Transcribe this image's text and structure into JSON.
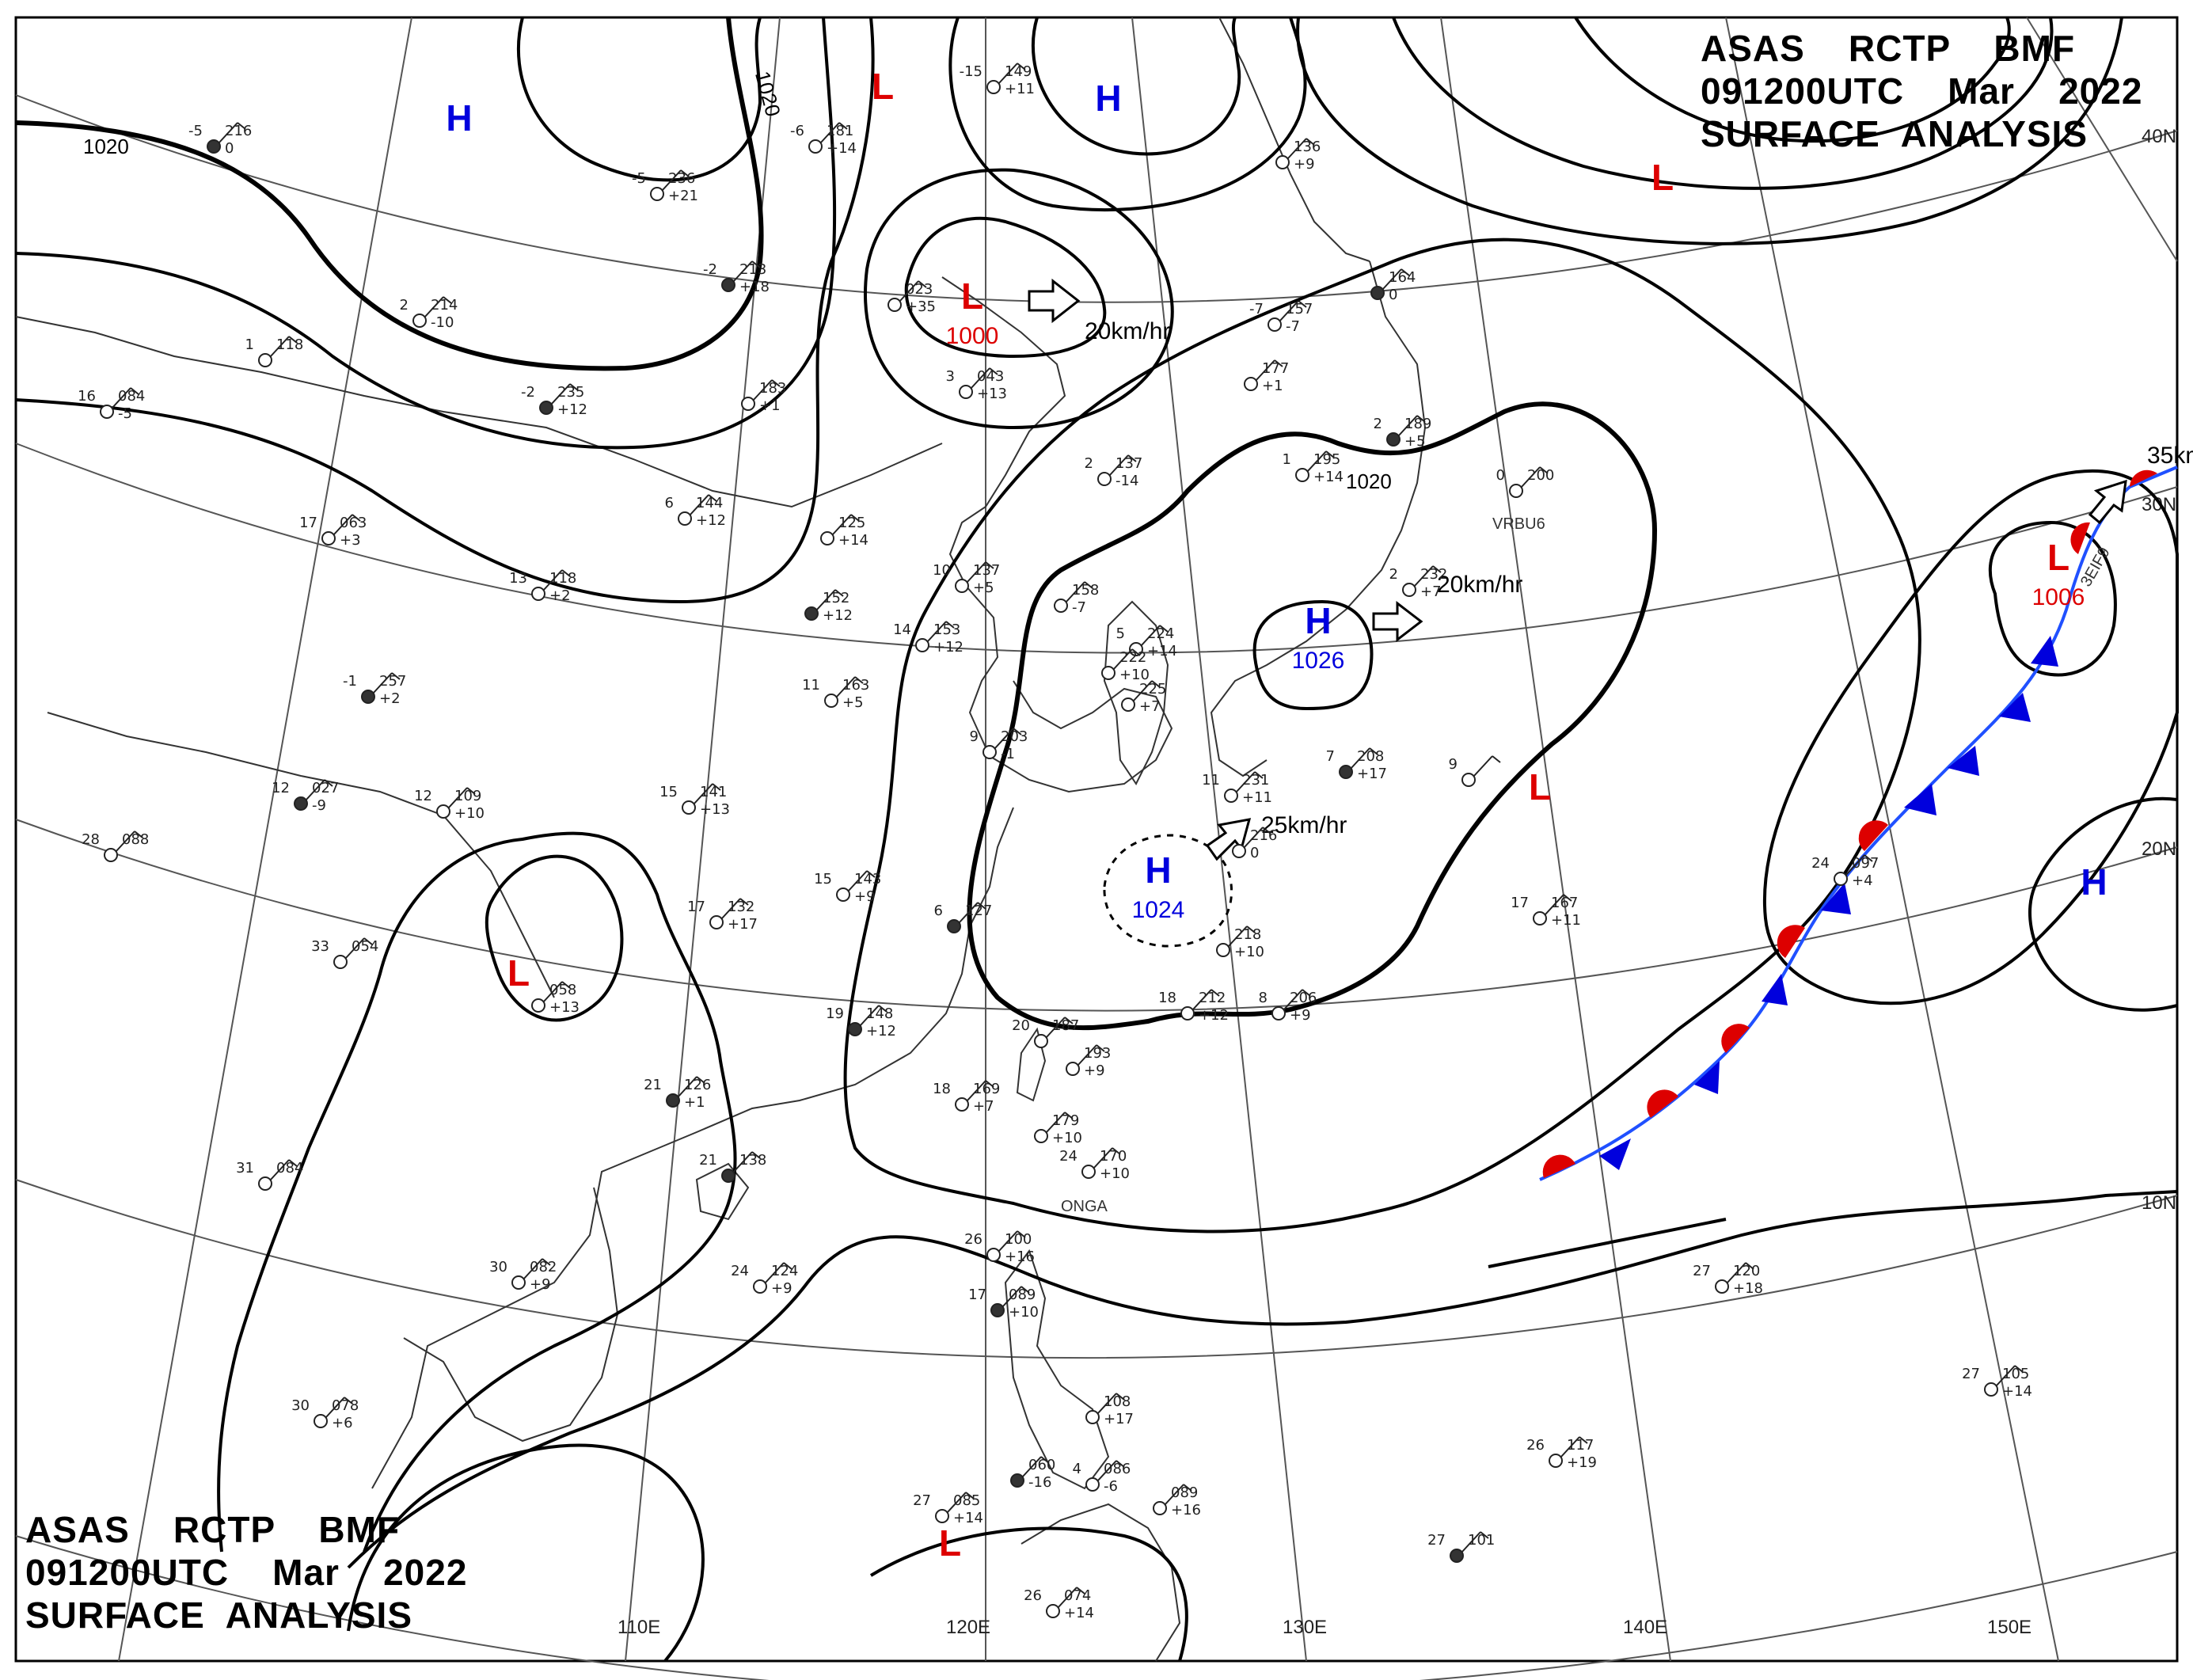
{
  "header": {
    "line1": "ASAS    RCTP    BMF",
    "line2": "091200UTC    Mar    2022",
    "line3": "SURFACE  ANALYSIS"
  },
  "footer": {
    "line1": "ASAS    RCTP    BMF",
    "line2": "091200UTC    Mar    2022",
    "line3": "SURFACE  ANALYSIS"
  },
  "longitude_labels": [
    "110E",
    "120E",
    "130E",
    "140E",
    "150E"
  ],
  "latitude_labels": [
    "40N",
    "30N",
    "20N",
    "10N"
  ],
  "isobar_labels": [
    "1020",
    "1020",
    "1020"
  ],
  "pressure_centers": [
    {
      "type": "H",
      "value": "",
      "color": "#0000dd"
    },
    {
      "type": "L",
      "value": "",
      "color": "#dd0000"
    },
    {
      "type": "H",
      "value": "",
      "color": "#0000dd"
    },
    {
      "type": "L",
      "value": "1000",
      "color": "#dd0000"
    },
    {
      "type": "L",
      "value": "",
      "color": "#dd0000"
    },
    {
      "type": "H",
      "value": "1026",
      "color": "#0000dd"
    },
    {
      "type": "H",
      "value": "1024",
      "color": "#0000dd"
    },
    {
      "type": "L",
      "value": "1006",
      "color": "#dd0000"
    },
    {
      "type": "L",
      "value": "",
      "color": "#dd0000"
    },
    {
      "type": "L",
      "value": "",
      "color": "#dd0000"
    },
    {
      "type": "H",
      "value": "",
      "color": "#0000dd"
    },
    {
      "type": "L",
      "value": "",
      "color": "#dd0000"
    }
  ],
  "movement_labels": [
    "20km/hr",
    "20km/hr",
    "25km/hr",
    "35km/hr"
  ],
  "place_labels": [
    "VRBU6",
    "ONGA",
    "3EIF9"
  ],
  "stations": [
    {
      "t": "-5",
      "p": "216",
      "d": "0"
    },
    {
      "t": "-5",
      "p": "236",
      "d": "+21"
    },
    {
      "t": "-6",
      "p": "181",
      "d": "+14"
    },
    {
      "t": "-15",
      "p": "149",
      "d": "+11"
    },
    {
      "t": "",
      "p": "136",
      "d": "+9"
    },
    {
      "t": "-2",
      "p": "213",
      "d": "+18"
    },
    {
      "t": "",
      "p": "023",
      "d": "+35"
    },
    {
      "t": "2",
      "p": "214",
      "d": "-10"
    },
    {
      "t": "1",
      "p": "118",
      "d": ""
    },
    {
      "t": "16",
      "p": "084",
      "d": "-5"
    },
    {
      "t": "-2",
      "p": "235",
      "d": "+12"
    },
    {
      "t": "",
      "p": "183",
      "d": "+1"
    },
    {
      "t": "3",
      "p": "043",
      "d": "+13"
    },
    {
      "t": "-7",
      "p": "157",
      "d": "-7"
    },
    {
      "t": "",
      "p": "177",
      "d": "+1"
    },
    {
      "t": "",
      "p": "164",
      "d": "0"
    },
    {
      "t": "6",
      "p": "144",
      "d": "+12"
    },
    {
      "t": "",
      "p": "125",
      "d": "+14"
    },
    {
      "t": "2",
      "p": "137",
      "d": "-14"
    },
    {
      "t": "1",
      "p": "195",
      "d": "+14"
    },
    {
      "t": "2",
      "p": "189",
      "d": "+5"
    },
    {
      "t": "0",
      "p": "200",
      "d": ""
    },
    {
      "t": "17",
      "p": "063",
      "d": "+3"
    },
    {
      "t": "13",
      "p": "118",
      "d": "+2"
    },
    {
      "t": "10",
      "p": "137",
      "d": "+5"
    },
    {
      "t": "",
      "p": "152",
      "d": "+12"
    },
    {
      "t": "14",
      "p": "153",
      "d": "+12"
    },
    {
      "t": "",
      "p": "158",
      "d": "-7"
    },
    {
      "t": "5",
      "p": "224",
      "d": "+14"
    },
    {
      "t": "2",
      "p": "232",
      "d": "+7"
    },
    {
      "t": "-1",
      "p": "257",
      "d": "+2"
    },
    {
      "t": "11",
      "p": "163",
      "d": "+5"
    },
    {
      "t": "",
      "p": "222",
      "d": "+10"
    },
    {
      "t": "",
      "p": "225",
      "d": "+7"
    },
    {
      "t": "9",
      "p": "203",
      "d": "-1"
    },
    {
      "t": "12",
      "p": "027",
      "d": "-9"
    },
    {
      "t": "12",
      "p": "109",
      "d": "+10"
    },
    {
      "t": "15",
      "p": "141",
      "d": "+13"
    },
    {
      "t": "28",
      "p": "088",
      "d": ""
    },
    {
      "t": "11",
      "p": "231",
      "d": "+11"
    },
    {
      "t": "7",
      "p": "208",
      "d": "+17"
    },
    {
      "t": "9",
      "p": "",
      "d": ""
    },
    {
      "t": "",
      "p": "216",
      "d": "0"
    },
    {
      "t": "15",
      "p": "143",
      "d": "+9"
    },
    {
      "t": "17",
      "p": "132",
      "d": "+17"
    },
    {
      "t": "6",
      "p": "127",
      "d": ""
    },
    {
      "t": "",
      "p": "218",
      "d": "+10"
    },
    {
      "t": "17",
      "p": "167",
      "d": "+11"
    },
    {
      "t": "33",
      "p": "054",
      "d": ""
    },
    {
      "t": "",
      "p": "058",
      "d": "+13"
    },
    {
      "t": "19",
      "p": "148",
      "d": "+12"
    },
    {
      "t": "18",
      "p": "212",
      "d": "+12"
    },
    {
      "t": "8",
      "p": "206",
      "d": "+9"
    },
    {
      "t": "20",
      "p": "187",
      "d": ""
    },
    {
      "t": "",
      "p": "193",
      "d": "+9"
    },
    {
      "t": "21",
      "p": "126",
      "d": "+1"
    },
    {
      "t": "18",
      "p": "169",
      "d": "+7"
    },
    {
      "t": "",
      "p": "179",
      "d": "+10"
    },
    {
      "t": "24",
      "p": "170",
      "d": "+10"
    },
    {
      "t": "31",
      "p": "084",
      "d": ""
    },
    {
      "t": "21",
      "p": "138",
      "d": ""
    },
    {
      "t": "24",
      "p": "097",
      "d": "+4"
    },
    {
      "t": "26",
      "p": "100",
      "d": "+16"
    },
    {
      "t": "24",
      "p": "124",
      "d": "+9"
    },
    {
      "t": "30",
      "p": "082",
      "d": "+9"
    },
    {
      "t": "17",
      "p": "089",
      "d": "+10"
    },
    {
      "t": "27",
      "p": "120",
      "d": "+18"
    },
    {
      "t": "30",
      "p": "078",
      "d": "+6"
    },
    {
      "t": "",
      "p": "108",
      "d": "+17"
    },
    {
      "t": "27",
      "p": "105",
      "d": "+14"
    },
    {
      "t": "",
      "p": "060",
      "d": "-16"
    },
    {
      "t": "4",
      "p": "086",
      "d": "-6"
    },
    {
      "t": "",
      "p": "089",
      "d": "+16"
    },
    {
      "t": "26",
      "p": "117",
      "d": "+19"
    },
    {
      "t": "27",
      "p": "085",
      "d": "+14"
    },
    {
      "t": "27",
      "p": "101",
      "d": ""
    },
    {
      "t": "26",
      "p": "074",
      "d": "+14"
    }
  ],
  "colors": {
    "low": "#dd0000",
    "high": "#0000dd",
    "isobar": "#000000",
    "coast": "#333333",
    "grid": "#555555"
  }
}
